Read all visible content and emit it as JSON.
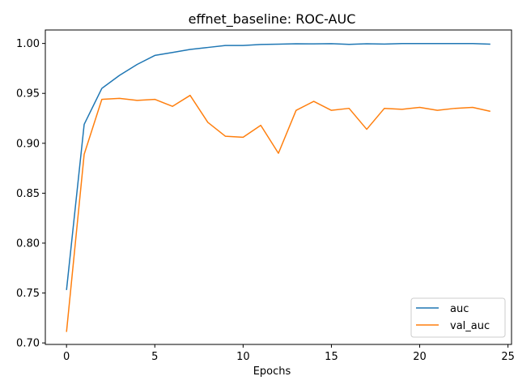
{
  "chart_data": {
    "type": "line",
    "title": "effnet_baseline: ROC-AUC",
    "xlabel": "Epochs",
    "ylabel": "",
    "xlim": [
      -1.2,
      25.2
    ],
    "ylim": [
      0.6985,
      1.0135
    ],
    "xticks": [
      0,
      5,
      10,
      15,
      20,
      25
    ],
    "yticks": [
      0.7,
      0.75,
      0.8,
      0.85,
      0.9,
      0.95,
      1.0
    ],
    "xtick_labels": [
      "0",
      "5",
      "10",
      "15",
      "20",
      "25"
    ],
    "ytick_labels": [
      "0.70",
      "0.75",
      "0.80",
      "0.85",
      "0.90",
      "0.95",
      "1.00"
    ],
    "grid": false,
    "legend_position": "lower-right",
    "x": [
      0,
      1,
      2,
      3,
      4,
      5,
      6,
      7,
      8,
      9,
      10,
      11,
      12,
      13,
      14,
      15,
      16,
      17,
      18,
      19,
      20,
      21,
      22,
      23,
      24
    ],
    "series": [
      {
        "name": "auc",
        "color": "#1f77b4",
        "values": [
          0.753,
          0.919,
          0.955,
          0.968,
          0.979,
          0.988,
          0.991,
          0.994,
          0.996,
          0.998,
          0.998,
          0.999,
          0.9993,
          0.9997,
          0.9996,
          0.9998,
          0.9991,
          0.9997,
          0.9994,
          0.9999,
          0.9999,
          0.9999,
          0.9999,
          0.9999,
          0.9993
        ]
      },
      {
        "name": "val_auc",
        "color": "#ff7f0e",
        "values": [
          0.711,
          0.889,
          0.944,
          0.945,
          0.943,
          0.944,
          0.937,
          0.948,
          0.921,
          0.907,
          0.906,
          0.918,
          0.89,
          0.933,
          0.942,
          0.933,
          0.935,
          0.914,
          0.935,
          0.934,
          0.936,
          0.933,
          0.935,
          0.936,
          0.932
        ]
      }
    ]
  }
}
